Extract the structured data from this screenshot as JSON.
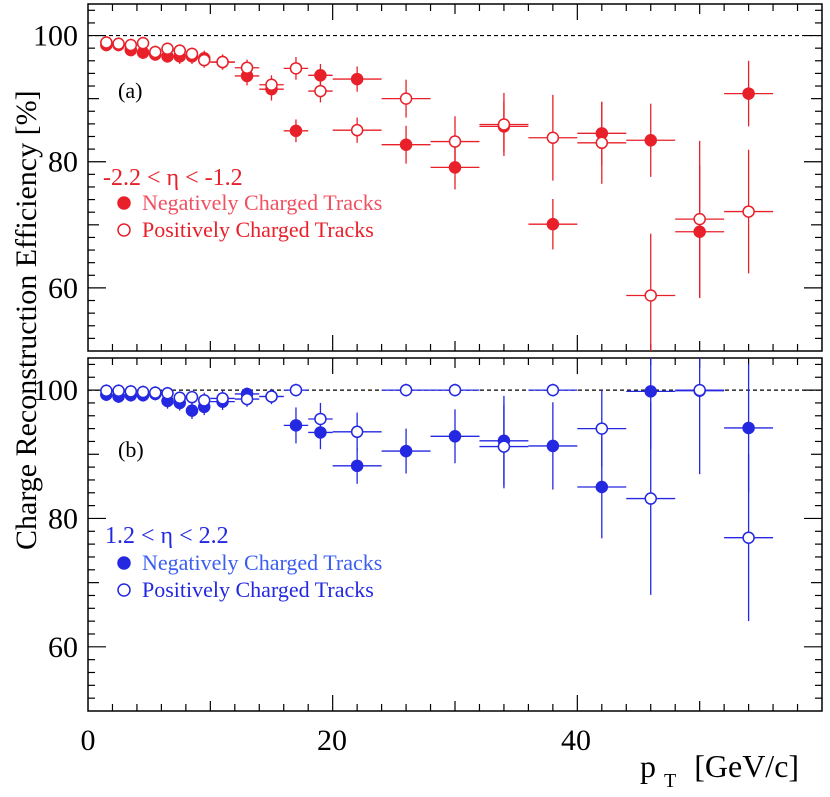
{
  "figure": {
    "ylabel": "Charge Reconstruction Efficiency [%]",
    "xlabel_main": "p",
    "xlabel_sub": "T",
    "xlabel_unit": "[GeV/c]",
    "x_ticks": [
      "0",
      "20",
      "40"
    ]
  },
  "chart_data": [
    {
      "type": "scatter",
      "panel_label": "(a)",
      "eta_label": "-2.2 < η < -1.2",
      "color": "#e8202a",
      "legend_color": "#f05060",
      "xlim": [
        0,
        60
      ],
      "ylim": [
        50,
        105
      ],
      "y_ticks": [
        60,
        80,
        100
      ],
      "y_tick_labels": [
        "60",
        "80",
        "100"
      ],
      "reference_line": 100,
      "legend": [
        "Negatively Charged Tracks",
        "Positively Charged Tracks"
      ],
      "series": [
        {
          "name": "Negatively Charged Tracks",
          "marker": "filled",
          "points": [
            {
              "x": 1.5,
              "y": 98.5,
              "xerr": 0.5,
              "yerr": 1.0
            },
            {
              "x": 2.5,
              "y": 98.5,
              "xerr": 0.5,
              "yerr": 1.0
            },
            {
              "x": 3.5,
              "y": 97.7,
              "xerr": 0.5,
              "yerr": 1.0
            },
            {
              "x": 4.5,
              "y": 97.3,
              "xerr": 0.5,
              "yerr": 1.0
            },
            {
              "x": 5.5,
              "y": 97.0,
              "xerr": 0.5,
              "yerr": 1.0
            },
            {
              "x": 6.5,
              "y": 96.7,
              "xerr": 0.5,
              "yerr": 1.0
            },
            {
              "x": 7.5,
              "y": 96.7,
              "xerr": 0.5,
              "yerr": 1.2
            },
            {
              "x": 8.5,
              "y": 96.7,
              "xerr": 0.5,
              "yerr": 1.2
            },
            {
              "x": 9.5,
              "y": 96.4,
              "xerr": 0.5,
              "yerr": 1.2
            },
            {
              "x": 11,
              "y": 95.8,
              "xerr": 1.0,
              "yerr": 1.2
            },
            {
              "x": 13,
              "y": 93.6,
              "xerr": 1.0,
              "yerr": 1.5
            },
            {
              "x": 15,
              "y": 91.5,
              "xerr": 1.0,
              "yerr": 1.8
            },
            {
              "x": 17,
              "y": 84.9,
              "xerr": 1.0,
              "yerr": 1.8
            },
            {
              "x": 19,
              "y": 93.7,
              "xerr": 1.0,
              "yerr": 1.8
            },
            {
              "x": 22,
              "y": 93.1,
              "xerr": 2.0,
              "yerr": 2.0
            },
            {
              "x": 26,
              "y": 82.7,
              "xerr": 2.0,
              "yerr": 3.0
            },
            {
              "x": 30,
              "y": 79.1,
              "xerr": 2.0,
              "yerr": 3.5
            },
            {
              "x": 34,
              "y": 85.6,
              "xerr": 2.0,
              "yerr": 4.0
            },
            {
              "x": 38,
              "y": 70.1,
              "xerr": 2.0,
              "yerr": 4.0
            },
            {
              "x": 42,
              "y": 84.5,
              "xerr": 2.0,
              "yerr": 5.0
            },
            {
              "x": 46,
              "y": 83.4,
              "xerr": 2.0,
              "yerr": 5.8
            },
            {
              "x": 50,
              "y": 68.9,
              "xerr": 2.0,
              "yerr": 10.5
            },
            {
              "x": 54,
              "y": 90.8,
              "xerr": 2.0,
              "yerr": 5.2
            }
          ]
        },
        {
          "name": "Positively Charged Tracks",
          "marker": "open",
          "points": [
            {
              "x": 1.5,
              "y": 98.9,
              "xerr": 0.5,
              "yerr": 1.0
            },
            {
              "x": 2.5,
              "y": 98.7,
              "xerr": 0.5,
              "yerr": 1.0
            },
            {
              "x": 3.5,
              "y": 98.5,
              "xerr": 0.5,
              "yerr": 1.0
            },
            {
              "x": 4.5,
              "y": 98.8,
              "xerr": 0.5,
              "yerr": 1.0
            },
            {
              "x": 5.5,
              "y": 97.4,
              "xerr": 0.5,
              "yerr": 1.0
            },
            {
              "x": 6.5,
              "y": 97.9,
              "xerr": 0.5,
              "yerr": 1.0
            },
            {
              "x": 7.5,
              "y": 97.6,
              "xerr": 0.5,
              "yerr": 1.0
            },
            {
              "x": 8.5,
              "y": 97.1,
              "xerr": 0.5,
              "yerr": 1.0
            },
            {
              "x": 9.5,
              "y": 96.1,
              "xerr": 0.5,
              "yerr": 1.2
            },
            {
              "x": 11,
              "y": 95.8,
              "xerr": 1.0,
              "yerr": 1.2
            },
            {
              "x": 13,
              "y": 94.9,
              "xerr": 1.0,
              "yerr": 1.3
            },
            {
              "x": 15,
              "y": 92.2,
              "xerr": 1.0,
              "yerr": 1.5
            },
            {
              "x": 17,
              "y": 94.8,
              "xerr": 1.0,
              "yerr": 1.8
            },
            {
              "x": 19,
              "y": 91.2,
              "xerr": 1.0,
              "yerr": 1.8
            },
            {
              "x": 22,
              "y": 85.0,
              "xerr": 2.0,
              "yerr": 2.0
            },
            {
              "x": 26,
              "y": 90.0,
              "xerr": 2.0,
              "yerr": 3.0
            },
            {
              "x": 30,
              "y": 83.2,
              "xerr": 2.0,
              "yerr": 4.0
            },
            {
              "x": 34,
              "y": 85.9,
              "xerr": 2.0,
              "yerr": 5.0
            },
            {
              "x": 38,
              "y": 83.8,
              "xerr": 2.0,
              "yerr": 6.8
            },
            {
              "x": 42,
              "y": 83.0,
              "xerr": 2.0,
              "yerr": 6.5
            },
            {
              "x": 46,
              "y": 58.8,
              "xerr": 2.0,
              "yerr": 9.8
            },
            {
              "x": 50,
              "y": 70.9,
              "xerr": 2.0,
              "yerr": 12.4
            },
            {
              "x": 54,
              "y": 72.1,
              "xerr": 2.0,
              "yerr": 9.8
            }
          ]
        }
      ]
    },
    {
      "type": "scatter",
      "panel_label": "(b)",
      "eta_label": "1.2 < η < 2.2",
      "color": "#2428e0",
      "legend_color": "#3c5ef0",
      "xlim": [
        0,
        60
      ],
      "ylim": [
        50,
        105
      ],
      "y_ticks": [
        60,
        80,
        100
      ],
      "y_tick_labels": [
        "60",
        "80",
        "100"
      ],
      "reference_line": 100,
      "legend": [
        "Negatively Charged Tracks",
        "Positively Charged Tracks"
      ],
      "series": [
        {
          "name": "Negatively Charged Tracks",
          "marker": "filled",
          "points": [
            {
              "x": 1.5,
              "y": 99.3,
              "xerr": 0.5,
              "yerr": 1.0
            },
            {
              "x": 2.5,
              "y": 99.0,
              "xerr": 0.5,
              "yerr": 1.0
            },
            {
              "x": 3.5,
              "y": 99.2,
              "xerr": 0.5,
              "yerr": 1.0
            },
            {
              "x": 4.5,
              "y": 99.2,
              "xerr": 0.5,
              "yerr": 1.0
            },
            {
              "x": 5.5,
              "y": 99.4,
              "xerr": 0.5,
              "yerr": 1.0
            },
            {
              "x": 6.5,
              "y": 98.3,
              "xerr": 0.5,
              "yerr": 1.2
            },
            {
              "x": 7.5,
              "y": 98.0,
              "xerr": 0.5,
              "yerr": 1.2
            },
            {
              "x": 8.5,
              "y": 96.8,
              "xerr": 0.5,
              "yerr": 1.3
            },
            {
              "x": 9.5,
              "y": 97.4,
              "xerr": 0.5,
              "yerr": 1.3
            },
            {
              "x": 11,
              "y": 98.2,
              "xerr": 1.0,
              "yerr": 1.3
            },
            {
              "x": 13,
              "y": 99.4,
              "xerr": 1.0,
              "yerr": 1.0
            },
            {
              "x": 15,
              "y": 99.0,
              "xerr": 1.0,
              "yerr": 1.2
            },
            {
              "x": 17,
              "y": 94.5,
              "xerr": 1.0,
              "yerr": 2.8
            },
            {
              "x": 19,
              "y": 93.4,
              "xerr": 1.0,
              "yerr": 2.6
            },
            {
              "x": 22,
              "y": 88.2,
              "xerr": 2.0,
              "yerr": 2.8
            },
            {
              "x": 26,
              "y": 90.5,
              "xerr": 2.0,
              "yerr": 3.5
            },
            {
              "x": 30,
              "y": 92.8,
              "xerr": 2.0,
              "yerr": 4.2
            },
            {
              "x": 34,
              "y": 92.1,
              "xerr": 2.0,
              "yerr": 7.0
            },
            {
              "x": 38,
              "y": 91.3,
              "xerr": 2.0,
              "yerr": 6.8
            },
            {
              "x": 42,
              "y": 84.9,
              "xerr": 2.0,
              "yerr": 8.0
            },
            {
              "x": 46,
              "y": 99.8,
              "xerr": 2.0,
              "yerr": 9.0
            },
            {
              "x": 50,
              "y": 99.9,
              "xerr": 2.0,
              "yerr": 13.0
            },
            {
              "x": 54,
              "y": 94.1,
              "xerr": 2.0,
              "yerr": 10.0
            }
          ]
        },
        {
          "name": "Positively Charged Tracks",
          "marker": "open",
          "points": [
            {
              "x": 1.5,
              "y": 99.9,
              "xerr": 0.5,
              "yerr": 1.0
            },
            {
              "x": 2.5,
              "y": 99.9,
              "xerr": 0.5,
              "yerr": 1.0
            },
            {
              "x": 3.5,
              "y": 99.8,
              "xerr": 0.5,
              "yerr": 1.0
            },
            {
              "x": 4.5,
              "y": 99.7,
              "xerr": 0.5,
              "yerr": 1.0
            },
            {
              "x": 5.5,
              "y": 99.6,
              "xerr": 0.5,
              "yerr": 1.0
            },
            {
              "x": 6.5,
              "y": 99.5,
              "xerr": 0.5,
              "yerr": 1.0
            },
            {
              "x": 7.5,
              "y": 98.8,
              "xerr": 0.5,
              "yerr": 1.0
            },
            {
              "x": 8.5,
              "y": 98.9,
              "xerr": 0.5,
              "yerr": 1.0
            },
            {
              "x": 9.5,
              "y": 98.4,
              "xerr": 0.5,
              "yerr": 1.2
            },
            {
              "x": 11,
              "y": 98.7,
              "xerr": 1.0,
              "yerr": 1.2
            },
            {
              "x": 13,
              "y": 98.6,
              "xerr": 1.0,
              "yerr": 1.2
            },
            {
              "x": 15,
              "y": 99.0,
              "xerr": 1.0,
              "yerr": 1.0
            },
            {
              "x": 17,
              "y": 100.0,
              "xerr": 1.0,
              "yerr": 1.0
            },
            {
              "x": 19,
              "y": 95.5,
              "xerr": 1.0,
              "yerr": 2.5
            },
            {
              "x": 22,
              "y": 93.5,
              "xerr": 2.0,
              "yerr": 3.0
            },
            {
              "x": 26,
              "y": 100.0,
              "xerr": 2.0,
              "yerr": 1.0
            },
            {
              "x": 30,
              "y": 100.0,
              "xerr": 2.0,
              "yerr": 1.0
            },
            {
              "x": 34,
              "y": 91.2,
              "xerr": 2.0,
              "yerr": 6.5
            },
            {
              "x": 38,
              "y": 100.0,
              "xerr": 2.0,
              "yerr": 1.0
            },
            {
              "x": 42,
              "y": 94.0,
              "xerr": 2.0,
              "yerr": 6.0
            },
            {
              "x": 46,
              "y": 83.1,
              "xerr": 2.0,
              "yerr": 15.0
            },
            {
              "x": 50,
              "y": 100.0,
              "xerr": 2.0,
              "yerr": 1.0
            },
            {
              "x": 54,
              "y": 77.0,
              "xerr": 2.0,
              "yerr": 13.0
            }
          ]
        }
      ]
    }
  ]
}
